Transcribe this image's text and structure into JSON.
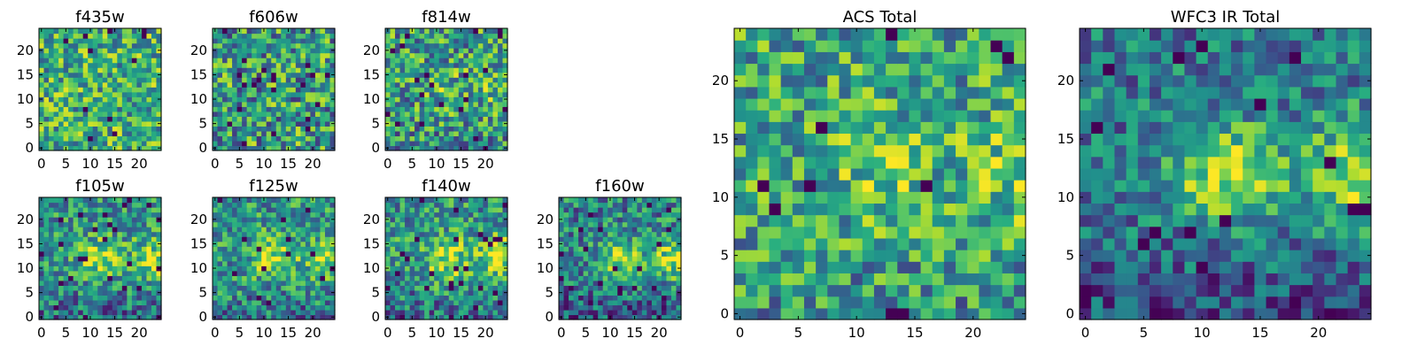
{
  "chart_data": [
    {
      "type": "heatmap",
      "title": "f435w",
      "xticks": [
        "0",
        "5",
        "10",
        "15",
        "20"
      ],
      "yticks": [
        "0",
        "5",
        "10",
        "15",
        "20"
      ],
      "xlim": [
        -0.5,
        24.5
      ],
      "ylim": [
        -0.5,
        24.5
      ],
      "grid_size": [
        25,
        25
      ],
      "colormap": "viridis",
      "pattern": "uniform noise, mostly green-yellow with scattered dark pixels",
      "seed": 11,
      "base": 0.62,
      "noise": 0.34,
      "blob_amp": 0,
      "vmin_frac": 0.02
    },
    {
      "type": "heatmap",
      "title": "f606w",
      "xticks": [
        "0",
        "5",
        "10",
        "15",
        "20"
      ],
      "yticks": [
        "0",
        "5",
        "10",
        "15",
        "20"
      ],
      "xlim": [
        -0.5,
        24.5
      ],
      "ylim": [
        -0.5,
        24.5
      ],
      "grid_size": [
        25,
        25
      ],
      "colormap": "viridis",
      "pattern": "uniform noise, teal-green",
      "seed": 23,
      "base": 0.55,
      "noise": 0.38,
      "blob_amp": 0,
      "vmin_frac": 0.03
    },
    {
      "type": "heatmap",
      "title": "f814w",
      "xticks": [
        "0",
        "5",
        "10",
        "15",
        "20"
      ],
      "yticks": [
        "0",
        "5",
        "10",
        "15",
        "20"
      ],
      "xlim": [
        -0.5,
        24.5
      ],
      "ylim": [
        -0.5,
        24.5
      ],
      "grid_size": [
        25,
        25
      ],
      "colormap": "viridis",
      "pattern": "noise with slightly brighter center",
      "seed": 37,
      "base": 0.55,
      "noise": 0.36,
      "blob_amp": 0.12,
      "vmin_frac": 0.03
    },
    {
      "type": "heatmap",
      "title": "f105w",
      "xticks": [
        "0",
        "5",
        "10",
        "15",
        "20"
      ],
      "yticks": [
        "0",
        "5",
        "10",
        "15",
        "20"
      ],
      "xlim": [
        -0.5,
        24.5
      ],
      "ylim": [
        -0.5,
        24.5
      ],
      "grid_size": [
        25,
        25
      ],
      "colormap": "viridis",
      "pattern": "smooth noise with bright source near center and right edge",
      "seed": 41,
      "base": 0.5,
      "noise": 0.3,
      "blob_amp": 0.35,
      "vmin_frac": 0.04
    },
    {
      "type": "heatmap",
      "title": "f125w",
      "xticks": [
        "0",
        "5",
        "10",
        "15",
        "20"
      ],
      "yticks": [
        "0",
        "5",
        "10",
        "15",
        "20"
      ],
      "xlim": [
        -0.5,
        24.5
      ],
      "ylim": [
        -0.5,
        24.5
      ],
      "grid_size": [
        25,
        25
      ],
      "colormap": "viridis",
      "pattern": "smooth noise with bright central source",
      "seed": 53,
      "base": 0.52,
      "noise": 0.3,
      "blob_amp": 0.35,
      "vmin_frac": 0.03
    },
    {
      "type": "heatmap",
      "title": "f140w",
      "xticks": [
        "0",
        "5",
        "10",
        "15",
        "20"
      ],
      "yticks": [
        "0",
        "5",
        "10",
        "15",
        "20"
      ],
      "xlim": [
        -0.5,
        24.5
      ],
      "ylim": [
        -0.5,
        24.5
      ],
      "grid_size": [
        25,
        25
      ],
      "colormap": "viridis",
      "pattern": "smooth noise with bright central source",
      "seed": 67,
      "base": 0.52,
      "noise": 0.3,
      "blob_amp": 0.38,
      "vmin_frac": 0.03
    },
    {
      "type": "heatmap",
      "title": "f160w",
      "xticks": [
        "0",
        "5",
        "10",
        "15",
        "20"
      ],
      "yticks": [
        "0",
        "5",
        "10",
        "15",
        "20"
      ],
      "xlim": [
        -0.5,
        24.5
      ],
      "ylim": [
        -0.5,
        24.5
      ],
      "grid_size": [
        25,
        25
      ],
      "colormap": "viridis",
      "pattern": "smooth noise, bright center and right edge, dark bottom-right",
      "seed": 79,
      "base": 0.45,
      "noise": 0.3,
      "blob_amp": 0.42,
      "vmin_frac": 0.04
    },
    {
      "type": "heatmap",
      "title": "ACS Total",
      "xticks": [
        "0",
        "5",
        "10",
        "15",
        "20"
      ],
      "yticks": [
        "0",
        "5",
        "10",
        "15",
        "20"
      ],
      "xlim": [
        -0.5,
        24.5
      ],
      "ylim": [
        -0.5,
        24.5
      ],
      "grid_size": [
        25,
        25
      ],
      "colormap": "viridis",
      "pattern": "noise, green-yellow, brighter right side",
      "seed": 97,
      "base": 0.58,
      "noise": 0.32,
      "blob_amp": 0.18,
      "vmin_frac": 0.02
    },
    {
      "type": "heatmap",
      "title": "WFC3 IR Total",
      "xticks": [
        "0",
        "5",
        "10",
        "15",
        "20"
      ],
      "yticks": [
        "0",
        "5",
        "10",
        "15",
        "20"
      ],
      "xlim": [
        -0.5,
        24.5
      ],
      "ylim": [
        -0.5,
        24.5
      ],
      "grid_size": [
        25,
        25
      ],
      "colormap": "viridis",
      "pattern": "smooth, bright source at center (12,12) and right edge (23,12), dark bottom",
      "seed": 101,
      "base": 0.42,
      "noise": 0.26,
      "blob_amp": 0.5,
      "vmin_frac": 0.03
    }
  ]
}
